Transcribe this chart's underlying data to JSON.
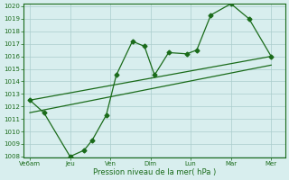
{
  "title": "",
  "xlabel": "Pression niveau de la mer( hPa )",
  "ylabel": "",
  "bg_color": "#d8eeee",
  "grid_color": "#aacccc",
  "line_color": "#1a6b1a",
  "ylim": [
    1008,
    1020
  ],
  "yticks": [
    1008,
    1009,
    1010,
    1011,
    1012,
    1013,
    1014,
    1015,
    1016,
    1017,
    1018,
    1019,
    1020
  ],
  "xtick_labels": [
    "Ve6am",
    "Jeu",
    "Ven",
    "Dim",
    "Lun",
    "Mar",
    "Mer"
  ],
  "xtick_positions": [
    0,
    1,
    2,
    3,
    4,
    5,
    6
  ],
  "main_line_x": [
    0,
    0.35,
    1.0,
    1.35,
    1.55,
    1.9,
    2.15,
    2.55,
    2.85,
    3.1,
    3.45,
    3.9,
    4.15,
    4.5,
    5.0,
    5.45,
    6.0
  ],
  "main_line_y": [
    1012.5,
    1011.5,
    1008.0,
    1008.5,
    1009.3,
    1011.3,
    1014.5,
    1017.2,
    1016.8,
    1014.5,
    1016.3,
    1016.2,
    1016.5,
    1019.3,
    1020.2,
    1019.0,
    1016.0
  ],
  "trend1_x": [
    0,
    6
  ],
  "trend1_y": [
    1012.5,
    1016.0
  ],
  "trend2_x": [
    0,
    6
  ],
  "trend2_y": [
    1011.5,
    1015.3
  ]
}
